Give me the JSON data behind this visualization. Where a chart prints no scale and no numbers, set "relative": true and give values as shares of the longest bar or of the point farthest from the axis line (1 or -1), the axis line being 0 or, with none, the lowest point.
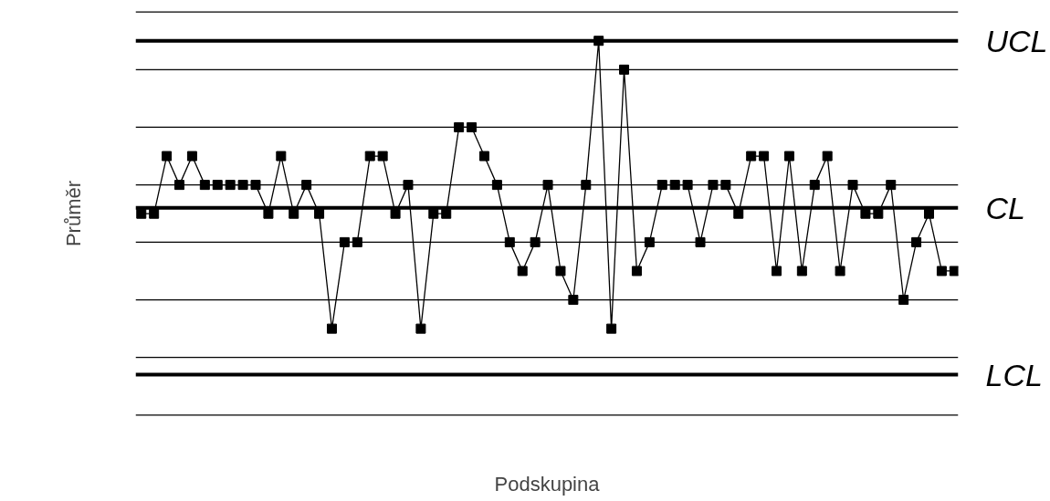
{
  "chart_data": {
    "type": "line",
    "relative": true,
    "xlabel": "Podskupina",
    "ylabel": "Průměr",
    "marker": "square",
    "line_style": "solid",
    "categories": [
      null,
      null,
      null,
      null,
      null,
      null,
      null,
      null,
      null,
      null,
      null,
      null,
      null,
      null,
      null,
      null,
      null,
      null,
      null,
      null,
      null,
      null,
      null,
      null,
      null,
      null,
      null,
      null,
      null,
      null,
      null,
      null,
      null,
      null,
      null,
      null,
      null,
      null,
      null,
      null,
      null,
      null,
      null,
      null,
      null,
      null,
      null,
      null,
      null,
      null,
      null,
      null,
      null,
      null,
      null,
      null,
      null,
      null,
      null,
      null,
      null,
      null,
      null,
      null,
      null
    ],
    "series": [
      {
        "color": "#000000",
        "values": [
          0.538,
          0.538,
          0.692,
          0.615,
          0.692,
          0.615,
          0.615,
          0.615,
          0.615,
          0.615,
          0.538,
          0.692,
          0.538,
          0.615,
          0.538,
          0.231,
          0.462,
          0.462,
          0.692,
          0.692,
          0.538,
          0.615,
          0.231,
          0.538,
          0.538,
          0.769,
          0.769,
          0.692,
          0.615,
          0.462,
          0.385,
          0.462,
          0.615,
          0.385,
          0.308,
          0.615,
          1.0,
          0.231,
          0.923,
          0.385,
          0.462,
          0.615,
          0.615,
          0.615,
          0.462,
          0.615,
          0.615,
          0.538,
          0.692,
          0.692,
          0.385,
          0.692,
          0.385,
          0.615,
          0.692,
          0.385,
          0.615,
          0.538,
          0.538,
          0.615,
          0.308,
          0.462,
          0.538,
          0.385,
          0.385
        ]
      }
    ],
    "ref_lines": [
      {
        "axis": "y",
        "value": 1.0,
        "label": "UCL",
        "color": "#000000"
      },
      {
        "axis": "y",
        "value": 0.554,
        "label": "CL",
        "color": "#000000"
      },
      {
        "axis": "y",
        "value": 0.108,
        "label": "LCL",
        "color": "#000000"
      },
      {
        "axis": "y",
        "value": 1.077,
        "label": null,
        "color": "#000000"
      },
      {
        "axis": "y",
        "value": 0.923,
        "label": null,
        "color": "#000000"
      },
      {
        "axis": "y",
        "value": 0.769,
        "label": null,
        "color": "#000000"
      },
      {
        "axis": "y",
        "value": 0.615,
        "label": null,
        "color": "#000000"
      },
      {
        "axis": "y",
        "value": 0.462,
        "label": null,
        "color": "#000000"
      },
      {
        "axis": "y",
        "value": 0.308,
        "label": null,
        "color": "#000000"
      },
      {
        "axis": "y",
        "value": 0.154,
        "label": null,
        "color": "#000000"
      },
      {
        "axis": "y",
        "value": 0.0,
        "label": null,
        "color": "#000000"
      }
    ]
  }
}
